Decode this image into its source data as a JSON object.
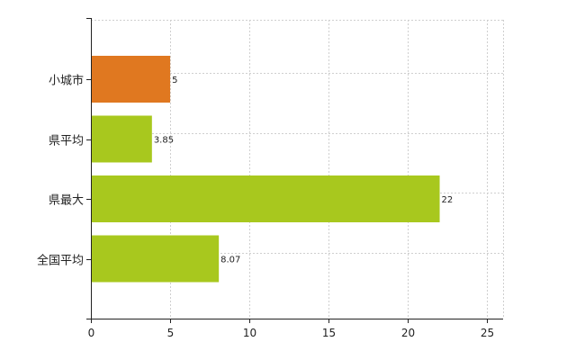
{
  "chart_data": {
    "type": "bar",
    "orientation": "horizontal",
    "categories": [
      "小城市",
      "県平均",
      "県最大",
      "全国平均"
    ],
    "values": [
      5,
      3.85,
      22,
      8.07
    ],
    "value_labels": [
      "5",
      "3.85",
      "22",
      "8.07"
    ],
    "bar_colors": [
      "#e07820",
      "#a8c81e",
      "#a8c81e",
      "#a8c81e"
    ],
    "xlim": [
      0,
      26
    ],
    "xticks": [
      0,
      5,
      10,
      15,
      20,
      25
    ],
    "xtick_labels": [
      "0",
      "5",
      "10",
      "15",
      "20",
      "25"
    ],
    "grid": true,
    "title": "",
    "xlabel": "",
    "ylabel": ""
  }
}
